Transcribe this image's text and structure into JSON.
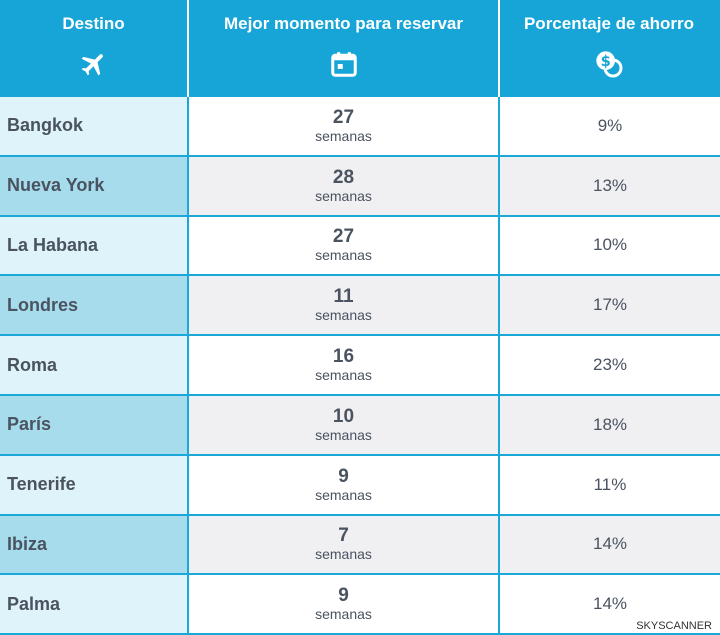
{
  "headers": {
    "destino": "Destino",
    "momento": "Mejor momento para reservar",
    "ahorro": "Porcentaje de ahorro"
  },
  "icons": {
    "destino": "airplane-icon",
    "momento": "calendar-icon",
    "ahorro": "coins-dollar-icon"
  },
  "rows": [
    {
      "destino": "Bangkok",
      "semanas": "27",
      "unidad": "semanas",
      "ahorro": "9%"
    },
    {
      "destino": "Nueva York",
      "semanas": "28",
      "unidad": "semanas",
      "ahorro": "13%"
    },
    {
      "destino": "La Habana",
      "semanas": "27",
      "unidad": "semanas",
      "ahorro": "10%"
    },
    {
      "destino": "Londres",
      "semanas": "11",
      "unidad": "semanas",
      "ahorro": "17%"
    },
    {
      "destino": "Roma",
      "semanas": "16",
      "unidad": "semanas",
      "ahorro": "23%"
    },
    {
      "destino": "París",
      "semanas": "10",
      "unidad": "semanas",
      "ahorro": "18%"
    },
    {
      "destino": "Tenerife",
      "semanas": "9",
      "unidad": "semanas",
      "ahorro": "11%"
    },
    {
      "destino": "Ibiza",
      "semanas": "7",
      "unidad": "semanas",
      "ahorro": "14%"
    },
    {
      "destino": "Palma",
      "semanas": "9",
      "unidad": "semanas",
      "ahorro": "14%"
    }
  ],
  "credit": "SKYSCANNER",
  "colors": {
    "header": "#16a5d6",
    "row_light": "#dff3fa",
    "row_dark": "#a6dcec",
    "text": "#4a5360"
  }
}
